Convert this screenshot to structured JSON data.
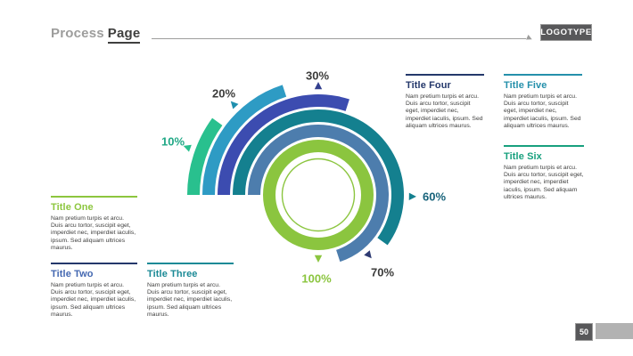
{
  "header": {
    "title_muted": "Process",
    "title_strong": "Page",
    "logotype": "LOGOTYPE"
  },
  "footer": {
    "page_number": "50"
  },
  "blocks": [
    {
      "title": "Title One",
      "body": "Nam pretium turpis et arcu. Duis arcu tortor, suscipit eget, imperdiet nec, imperdiet iaculis, ipsum. Sed aliquam ultrices maurus.",
      "accent": "#8cc63e",
      "line": "#8cc63e"
    },
    {
      "title": "Title Two",
      "body": "Nam pretium turpis et arcu. Duis arcu tortor, suscipit eget, imperdiet nec, imperdiet iaculis, ipsum. Sed aliquam ultrices maurus.",
      "accent": "#4468b1",
      "line": "#24386b"
    },
    {
      "title": "Title Three",
      "body": "Nam pretium turpis et arcu. Duis arcu tortor, suscipit eget, imperdiet nec, imperdiet iaculis, ipsum. Sed aliquam ultrices maurus.",
      "accent": "#1b8a96",
      "line": "#1b8a96"
    },
    {
      "title": "Title Four",
      "body": "Nam pretium turpis et arcu. Duis arcu tortor, suscipit eget, imperdiet nec, imperdiet iaculis, ipsum. Sed aliquam ultrices maurus.",
      "accent": "#24386b",
      "line": "#24386b"
    },
    {
      "title": "Title Five",
      "body": "Nam pretium turpis et arcu. Duis arcu tortor, suscipit eget, imperdiet nec, imperdiet iaculis, ipsum. Sed aliquam ultrices maurus.",
      "accent": "#2590ab",
      "line": "#2590ab"
    },
    {
      "title": "Title Six",
      "body": "Nam pretium turpis et arcu. Duis arcu tortor, suscipit eget, imperdiet nec, imperdiet iaculis, ipsum. Sed aliquam ultrices maurus.",
      "accent": "#18a07e",
      "line": "#18a07e"
    }
  ],
  "chart_data": {
    "type": "radial_progress_rings",
    "title": "",
    "unit": "%",
    "start_position": "west",
    "direction": "clockwise",
    "order_inner_to_outer": [
      100,
      70,
      60,
      30,
      20,
      10
    ],
    "inner_circle_color": "#8bc53f",
    "segments": [
      {
        "label": "10%",
        "value": 10,
        "color": "#29c08e",
        "label_color": "#21a886",
        "arrow_color": "#29c08e"
      },
      {
        "label": "20%",
        "value": 20,
        "color": "#2e9bc4",
        "label_color": "#3c3c3b",
        "arrow_color": "#1e8fae"
      },
      {
        "label": "30%",
        "value": 30,
        "color": "#3c4cb0",
        "label_color": "#3c3c3b",
        "arrow_color": "#323f8e"
      },
      {
        "label": "60%",
        "value": 60,
        "color": "#14808f",
        "label_color": "#16627a",
        "arrow_color": "#14808f"
      },
      {
        "label": "70%",
        "value": 70,
        "color": "#4d7dad",
        "label_color": "#3c3c3b",
        "arrow_color": "#2e3a72"
      },
      {
        "label": "100%",
        "value": 100,
        "color": "#8bc53f",
        "label_color": "#8bc53f",
        "arrow_color": "#8bc53f"
      }
    ]
  }
}
